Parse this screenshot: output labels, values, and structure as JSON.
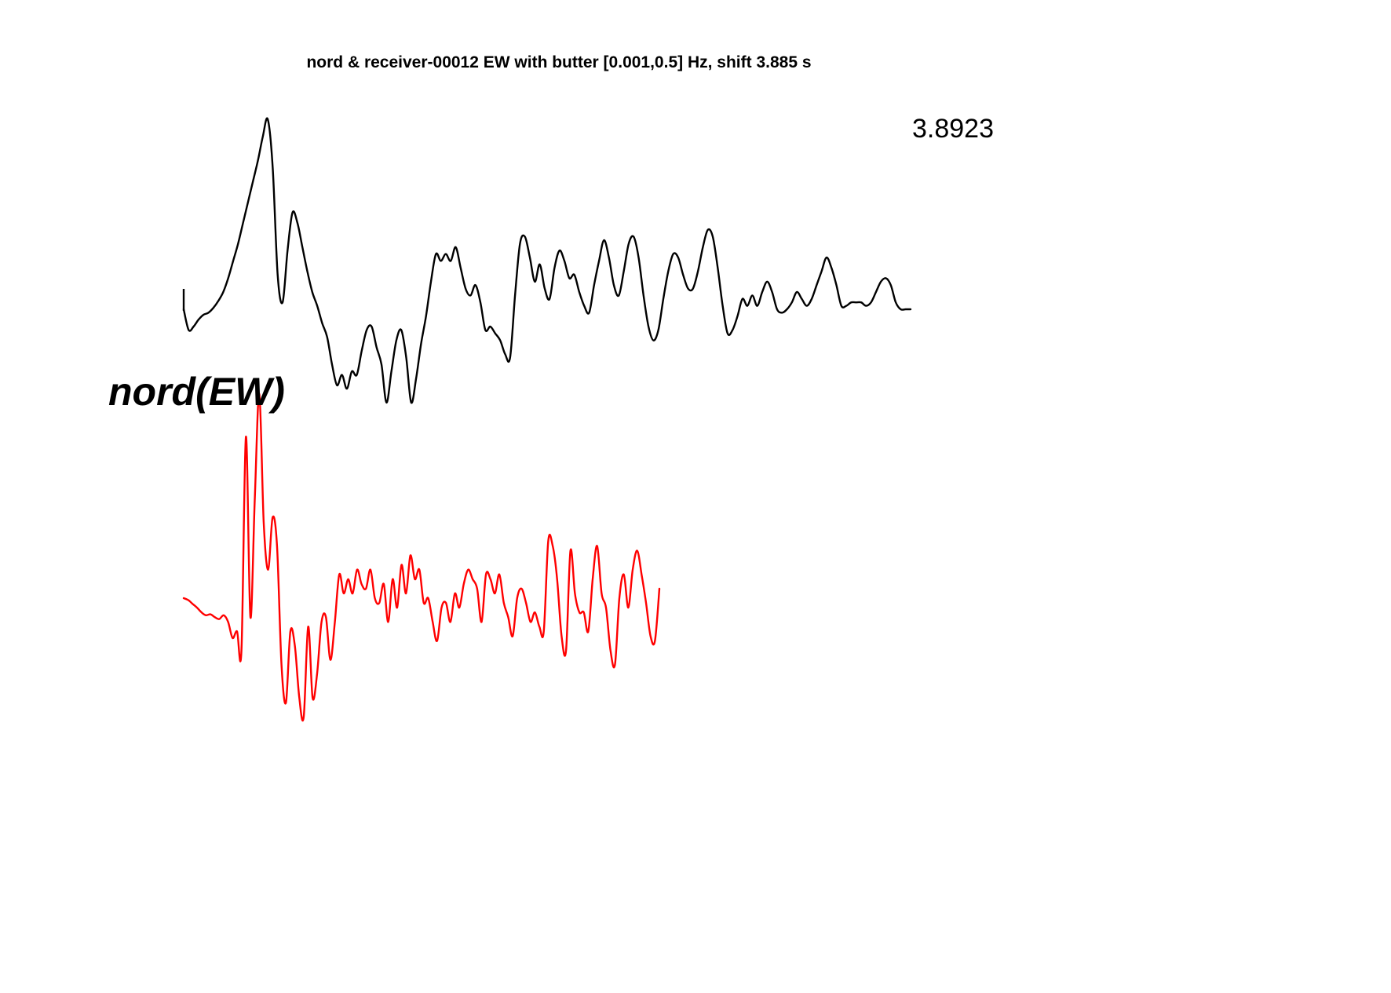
{
  "chart_data": {
    "type": "line",
    "title": "nord & receiver-00012 EW with butter [0.001,0.5] Hz, shift 3.885 s",
    "amplitude_label": "3.8923",
    "station_label": "nord(EW)",
    "axes_visible": false,
    "grid": false,
    "colors": {
      "observed": "#000000",
      "synthetic": "#ff0000"
    },
    "series": [
      {
        "values": [
          0.0,
          -0.3,
          -0.25,
          -0.15,
          -0.08,
          -0.05,
          0.02,
          0.12,
          0.25,
          0.45,
          0.7,
          0.95,
          1.25,
          1.55,
          1.85,
          2.15,
          2.5,
          2.75,
          2.05,
          0.5,
          0.1,
          0.85,
          1.4,
          1.25,
          0.9,
          0.55,
          0.25,
          0.05,
          -0.2,
          -0.4,
          -0.8,
          -1.1,
          -0.95,
          -1.15,
          -0.9,
          -0.95,
          -0.6,
          -0.3,
          -0.25,
          -0.55,
          -0.8,
          -1.35,
          -0.9,
          -0.45,
          -0.3,
          -0.7,
          -1.35,
          -1.0,
          -0.5,
          -0.1,
          0.4,
          0.8,
          0.7,
          0.8,
          0.7,
          0.9,
          0.6,
          0.3,
          0.2,
          0.35,
          0.1,
          -0.3,
          -0.25,
          -0.35,
          -0.45,
          -0.65,
          -0.7,
          0.2,
          0.95,
          1.05,
          0.75,
          0.4,
          0.65,
          0.3,
          0.15,
          0.6,
          0.85,
          0.7,
          0.45,
          0.5,
          0.25,
          0.05,
          -0.05,
          0.35,
          0.7,
          1.0,
          0.75,
          0.35,
          0.2,
          0.55,
          0.95,
          1.05,
          0.75,
          0.2,
          -0.25,
          -0.45,
          -0.3,
          0.15,
          0.55,
          0.8,
          0.75,
          0.5,
          0.3,
          0.3,
          0.55,
          0.9,
          1.15,
          1.05,
          0.6,
          0.05,
          -0.35,
          -0.3,
          -0.1,
          0.15,
          0.05,
          0.2,
          0.05,
          0.25,
          0.4,
          0.25,
          0.0,
          -0.05,
          0.0,
          0.1,
          0.25,
          0.15,
          0.05,
          0.15,
          0.35,
          0.55,
          0.75,
          0.6,
          0.35,
          0.05,
          0.05,
          0.1,
          0.1,
          0.1,
          0.05,
          0.1,
          0.25,
          0.4,
          0.45,
          0.35,
          0.1,
          0.0,
          0.0,
          0.0
        ]
      },
      {
        "values": [
          0.0,
          -0.02,
          -0.06,
          -0.1,
          -0.15,
          -0.18,
          -0.17,
          -0.2,
          -0.22,
          -0.18,
          -0.25,
          -0.42,
          -0.35,
          -0.55,
          1.7,
          -0.2,
          1.05,
          2.15,
          0.8,
          0.3,
          0.85,
          0.55,
          -0.7,
          -1.1,
          -0.35,
          -0.5,
          -1.05,
          -1.25,
          -0.3,
          -1.05,
          -0.8,
          -0.25,
          -0.2,
          -0.65,
          -0.25,
          0.25,
          0.05,
          0.2,
          0.05,
          0.3,
          0.15,
          0.1,
          0.3,
          0.0,
          -0.05,
          0.15,
          -0.25,
          0.2,
          -0.1,
          0.35,
          0.05,
          0.45,
          0.2,
          0.3,
          -0.05,
          0.0,
          -0.25,
          -0.45,
          -0.1,
          -0.05,
          -0.25,
          0.05,
          -0.1,
          0.15,
          0.3,
          0.2,
          0.1,
          -0.25,
          0.25,
          0.2,
          0.05,
          0.25,
          -0.05,
          -0.2,
          -0.4,
          0.0,
          0.1,
          -0.05,
          -0.25,
          -0.15,
          -0.3,
          -0.35,
          0.6,
          0.55,
          0.2,
          -0.4,
          -0.55,
          0.5,
          0.05,
          -0.15,
          -0.15,
          -0.35,
          0.2,
          0.55,
          0.05,
          -0.1,
          -0.55,
          -0.7,
          0.0,
          0.25,
          -0.1,
          0.3,
          0.5,
          0.25,
          -0.05,
          -0.4,
          -0.45,
          0.1
        ]
      }
    ]
  }
}
